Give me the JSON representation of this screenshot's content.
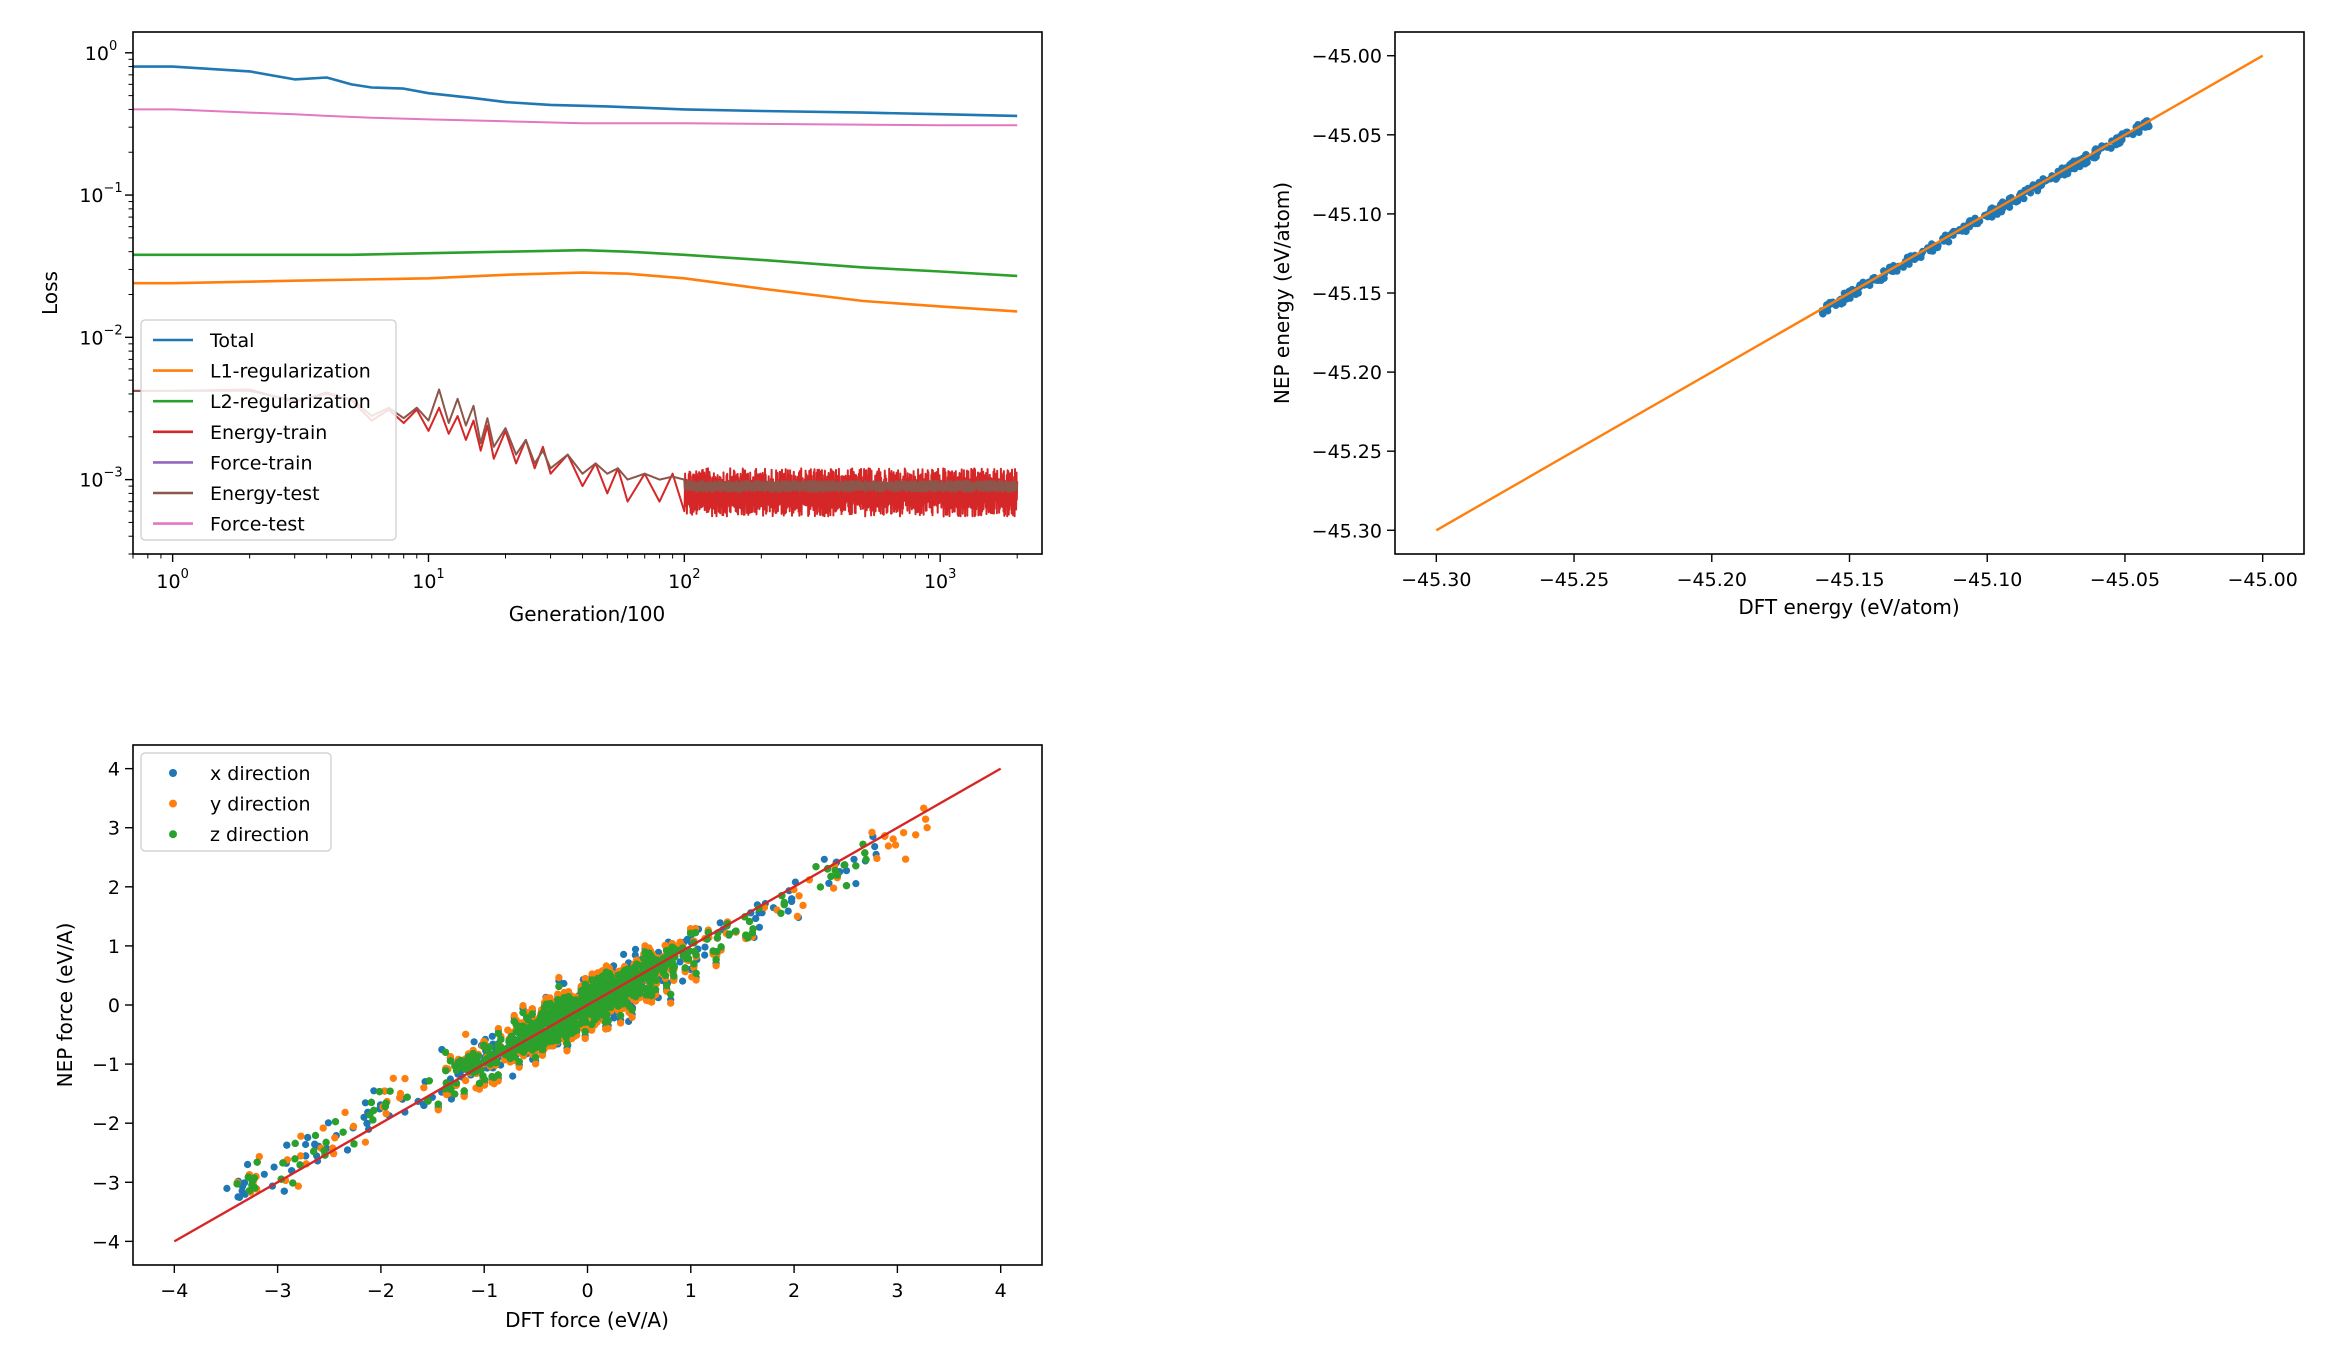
{
  "chart_data": [
    {
      "type": "line",
      "xlabel": "Generation/100",
      "ylabel": "Loss",
      "xscale": "log",
      "yscale": "log",
      "xlim": [
        0.7,
        2500
      ],
      "ylim": [
        0.0003,
        1.4
      ],
      "x_ticks": [
        {
          "v": 1,
          "base": "10",
          "exp": "0"
        },
        {
          "v": 10,
          "base": "10",
          "exp": "1"
        },
        {
          "v": 100,
          "base": "10",
          "exp": "2"
        },
        {
          "v": 1000,
          "base": "10",
          "exp": "3"
        }
      ],
      "y_ticks": [
        {
          "v": 1,
          "base": "10",
          "exp": "0"
        },
        {
          "v": 0.1,
          "base": "10",
          "exp": "−1"
        },
        {
          "v": 0.01,
          "base": "10",
          "exp": "−2"
        },
        {
          "v": 0.001,
          "base": "10",
          "exp": "−3"
        }
      ],
      "legend_position": "lower-left",
      "grid": false,
      "series": [
        {
          "name": "Total",
          "color": "#1f77b4",
          "x": [
            0.7,
            1,
            2,
            3,
            4,
            5,
            6,
            8,
            10,
            15,
            20,
            30,
            50,
            100,
            200,
            500,
            1000,
            2000
          ],
          "values": [
            0.8,
            0.8,
            0.74,
            0.65,
            0.67,
            0.6,
            0.57,
            0.56,
            0.52,
            0.48,
            0.45,
            0.43,
            0.42,
            0.4,
            0.39,
            0.38,
            0.37,
            0.36
          ]
        },
        {
          "name": "L1-regularization",
          "color": "#ff7f0e",
          "x": [
            0.7,
            1,
            3,
            10,
            20,
            40,
            60,
            100,
            200,
            500,
            1000,
            2000
          ],
          "values": [
            0.024,
            0.024,
            0.025,
            0.026,
            0.0275,
            0.0285,
            0.028,
            0.026,
            0.022,
            0.018,
            0.0165,
            0.0152
          ]
        },
        {
          "name": "L2-regularization",
          "color": "#2ca02c",
          "x": [
            0.7,
            1,
            5,
            10,
            20,
            40,
            60,
            100,
            200,
            500,
            1000,
            2000
          ],
          "values": [
            0.038,
            0.038,
            0.038,
            0.039,
            0.04,
            0.041,
            0.04,
            0.038,
            0.035,
            0.031,
            0.029,
            0.027
          ]
        },
        {
          "name": "Energy-train",
          "color": "#d62728",
          "x": [
            0.7,
            1,
            2,
            3,
            4,
            5,
            6,
            7,
            8,
            9,
            10,
            11,
            12,
            13,
            14,
            15,
            16,
            17,
            18,
            20,
            22,
            24,
            26,
            28,
            30,
            35,
            40,
            45,
            50,
            55,
            60,
            70,
            80,
            90,
            100
          ],
          "values": [
            0.0042,
            0.0042,
            0.0043,
            0.0035,
            0.0041,
            0.0036,
            0.0026,
            0.0031,
            0.0025,
            0.0031,
            0.0022,
            0.0032,
            0.0021,
            0.0028,
            0.0019,
            0.0026,
            0.0016,
            0.0024,
            0.0014,
            0.0022,
            0.0013,
            0.0019,
            0.0012,
            0.0017,
            0.0011,
            0.0015,
            0.0009,
            0.0013,
            0.0008,
            0.0012,
            0.0007,
            0.0011,
            0.0007,
            0.0011,
            0.0006
          ],
          "noise": {
            "from": 100,
            "to": 2000,
            "low": 0.00055,
            "high": 0.0012
          }
        },
        {
          "name": "Force-train",
          "color": "#9467bd",
          "x": [],
          "values": []
        },
        {
          "name": "Energy-test",
          "color": "#8c564b",
          "x": [
            0.7,
            1,
            2,
            3,
            4,
            5,
            6,
            7,
            8,
            9,
            10,
            11,
            12,
            13,
            14,
            15,
            16,
            17,
            18,
            20,
            22,
            24,
            26,
            28,
            30,
            35,
            40,
            45,
            50,
            55,
            60,
            70,
            80,
            90,
            100
          ],
          "values": [
            0.0042,
            0.0042,
            0.0042,
            0.0036,
            0.004,
            0.0037,
            0.0028,
            0.0032,
            0.0027,
            0.0032,
            0.0026,
            0.0043,
            0.0025,
            0.0037,
            0.0024,
            0.0033,
            0.0018,
            0.0027,
            0.0017,
            0.0023,
            0.0015,
            0.0019,
            0.0013,
            0.0016,
            0.0012,
            0.0015,
            0.0011,
            0.0013,
            0.0011,
            0.0012,
            0.001,
            0.0011,
            0.001,
            0.00105,
            0.001
          ],
          "noise": {
            "from": 100,
            "to": 2000,
            "low": 0.00082,
            "high": 0.00098
          }
        },
        {
          "name": "Force-test",
          "color": "#e377c2",
          "x": [
            0.7,
            1,
            2,
            3,
            4,
            6,
            10,
            20,
            40,
            100,
            300,
            1000,
            2000
          ],
          "values": [
            0.4,
            0.4,
            0.38,
            0.37,
            0.36,
            0.35,
            0.34,
            0.33,
            0.32,
            0.32,
            0.315,
            0.31,
            0.31
          ]
        }
      ]
    },
    {
      "type": "scatter",
      "xlabel": "DFT energy (eV/atom)",
      "ylabel": "NEP energy (eV/atom)",
      "xlim": [
        -45.315,
        -44.985
      ],
      "ylim": [
        -45.315,
        -44.985
      ],
      "x_ticks": [
        "−45.30",
        "−45.25",
        "−45.20",
        "−45.15",
        "−45.10",
        "−45.05",
        "−45.00"
      ],
      "y_ticks": [
        "−45.30",
        "−45.25",
        "−45.20",
        "−45.15",
        "−45.10",
        "−45.05",
        "−45.00"
      ],
      "x_tick_values": [
        -45.3,
        -45.25,
        -45.2,
        -45.15,
        -45.1,
        -45.05,
        -45.0
      ],
      "y_tick_values": [
        -45.3,
        -45.25,
        -45.2,
        -45.15,
        -45.1,
        -45.05,
        -45.0
      ],
      "grid": false,
      "series": [
        {
          "name": "",
          "color": "#1f77b4",
          "x_range": [
            -45.16,
            -45.04
          ],
          "offset_range": [
            -0.004,
            0.002
          ]
        },
        {
          "name": "",
          "type": "line",
          "color": "#ff7f0e",
          "x": [
            -45.3,
            -45.0
          ],
          "values": [
            -45.3,
            -45.0
          ]
        }
      ]
    },
    {
      "type": "scatter",
      "xlabel": "DFT force (eV/A)",
      "ylabel": "NEP force (eV/A)",
      "xlim": [
        -4.4,
        4.4
      ],
      "ylim": [
        -4.4,
        4.4
      ],
      "x_ticks": [
        "−4",
        "−3",
        "−2",
        "−1",
        "0",
        "1",
        "2",
        "3",
        "4"
      ],
      "y_ticks": [
        "−4",
        "−3",
        "−2",
        "−1",
        "0",
        "1",
        "2",
        "3",
        "4"
      ],
      "x_tick_values": [
        -4,
        -3,
        -2,
        -1,
        0,
        1,
        2,
        3,
        4
      ],
      "y_tick_values": [
        -4,
        -3,
        -2,
        -1,
        0,
        1,
        2,
        3,
        4
      ],
      "legend_position": "upper-left",
      "grid": false,
      "series": [
        {
          "name": "x direction",
          "color": "#1f77b4",
          "x_range": [
            -3.5,
            2.9
          ],
          "spread": 0.35
        },
        {
          "name": "y direction",
          "color": "#ff7f0e",
          "x_range": [
            -3.4,
            3.4
          ],
          "spread": 0.38
        },
        {
          "name": "z direction",
          "color": "#2ca02c",
          "x_range": [
            -3.4,
            2.8
          ],
          "spread": 0.3
        },
        {
          "name": "",
          "type": "line",
          "color": "#d62728",
          "x": [
            -4,
            4
          ],
          "values": [
            -4,
            4
          ]
        }
      ]
    }
  ]
}
